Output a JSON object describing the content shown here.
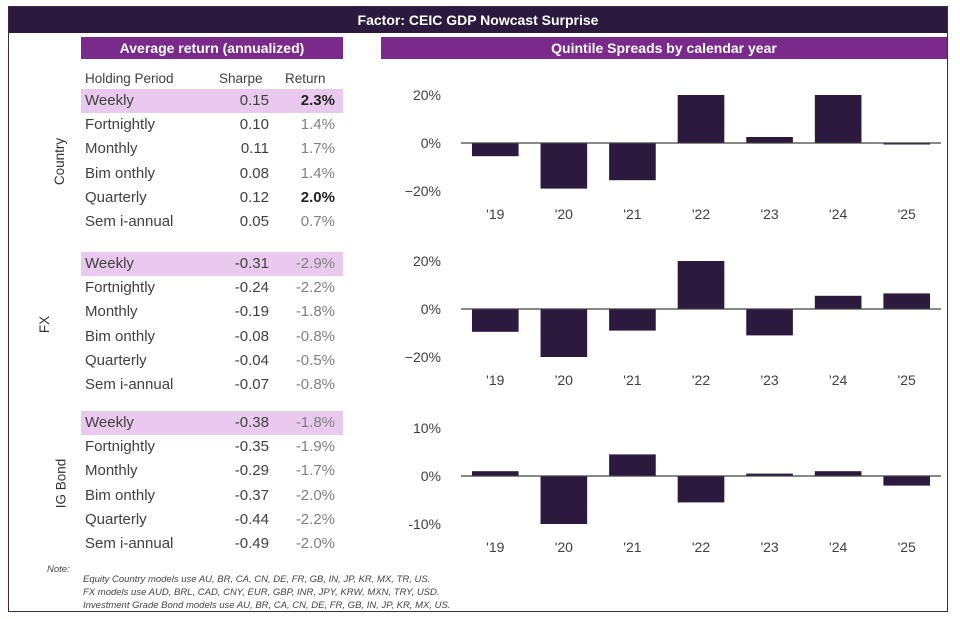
{
  "title": "Factor: CEIC GDP Nowcast Surprise",
  "left_header": "Average return (annualized)",
  "right_header": "Quintile Spreads by calendar year",
  "columns": {
    "holding": "Holding Period",
    "sharpe": "Sharpe",
    "ret": "Return"
  },
  "groups": [
    {
      "label": "Country",
      "rows": [
        {
          "period": "Weekly",
          "sharpe": "0.15",
          "ret": "2.3%",
          "highlight": true,
          "bold": true
        },
        {
          "period": "Fortnightly",
          "sharpe": "0.10",
          "ret": "1.4%",
          "highlight": false,
          "bold": false
        },
        {
          "period": "Monthly",
          "sharpe": "0.11",
          "ret": "1.7%",
          "highlight": false,
          "bold": false
        },
        {
          "period": "Bim onthly",
          "sharpe": "0.08",
          "ret": "1.4%",
          "highlight": false,
          "bold": false
        },
        {
          "period": "Quarterly",
          "sharpe": "0.12",
          "ret": "2.0%",
          "highlight": false,
          "bold": true
        },
        {
          "period": "Sem i-annual",
          "sharpe": "0.05",
          "ret": "0.7%",
          "highlight": false,
          "bold": false
        }
      ]
    },
    {
      "label": "FX",
      "rows": [
        {
          "period": "Weekly",
          "sharpe": "-0.31",
          "ret": "-2.9%",
          "highlight": true,
          "bold": false
        },
        {
          "period": "Fortnightly",
          "sharpe": "-0.24",
          "ret": "-2.2%",
          "highlight": false,
          "bold": false
        },
        {
          "period": "Monthly",
          "sharpe": "-0.19",
          "ret": "-1.8%",
          "highlight": false,
          "bold": false
        },
        {
          "period": "Bim onthly",
          "sharpe": "-0.08",
          "ret": "-0.8%",
          "highlight": false,
          "bold": false
        },
        {
          "period": "Quarterly",
          "sharpe": "-0.04",
          "ret": "-0.5%",
          "highlight": false,
          "bold": false
        },
        {
          "period": "Sem i-annual",
          "sharpe": "-0.07",
          "ret": "-0.8%",
          "highlight": false,
          "bold": false
        }
      ]
    },
    {
      "label": "IG Bond",
      "rows": [
        {
          "period": "Weekly",
          "sharpe": "-0.38",
          "ret": "-1.8%",
          "highlight": true,
          "bold": false
        },
        {
          "period": "Fortnightly",
          "sharpe": "-0.35",
          "ret": "-1.9%",
          "highlight": false,
          "bold": false
        },
        {
          "period": "Monthly",
          "sharpe": "-0.29",
          "ret": "-1.7%",
          "highlight": false,
          "bold": false
        },
        {
          "period": "Bim onthly",
          "sharpe": "-0.37",
          "ret": "-2.0%",
          "highlight": false,
          "bold": false
        },
        {
          "period": "Quarterly",
          "sharpe": "-0.44",
          "ret": "-2.2%",
          "highlight": false,
          "bold": false
        },
        {
          "period": "Sem i-annual",
          "sharpe": "-0.49",
          "ret": "-2.0%",
          "highlight": false,
          "bold": false
        }
      ]
    }
  ],
  "note": {
    "label": "Note:",
    "lines": [
      "Equity Country models use AU, BR, CA, CN, DE, FR, GB, IN, JP, KR, MX, TR, US.",
      "FX models use AUD, BRL, CAD, CNY, EUR, GBP, INR, JPY, KRW, MXN, TRY, USD.",
      "Investment Grade Bond models use AU, BR, CA, CN, DE, FR, GB, IN, JP, KR, MX, US."
    ]
  },
  "colors": {
    "bar": "#2b1a3d",
    "axis": "#404040"
  },
  "chart_data": [
    {
      "type": "bar",
      "title": "",
      "categories": [
        "'19",
        "'20",
        "'21",
        "'22",
        "'23",
        "'24",
        "'25"
      ],
      "values": [
        -5.5,
        -19,
        -15.5,
        20,
        2.5,
        20,
        -0.5
      ],
      "ylim": [
        -20,
        20
      ],
      "yticks": [
        20,
        0,
        -20
      ],
      "ytick_labels": [
        "20%",
        "0%",
        "−20%"
      ]
    },
    {
      "type": "bar",
      "title": "",
      "categories": [
        "'19",
        "'20",
        "'21",
        "'22",
        "'23",
        "'24",
        "'25"
      ],
      "values": [
        -9.5,
        -20,
        -9,
        20,
        -11,
        5.5,
        6.5
      ],
      "ylim": [
        -20,
        20
      ],
      "yticks": [
        20,
        0,
        -20
      ],
      "ytick_labels": [
        "20%",
        "0%",
        "−20%"
      ]
    },
    {
      "type": "bar",
      "title": "",
      "categories": [
        "'19",
        "'20",
        "'21",
        "'22",
        "'23",
        "'24",
        "'25"
      ],
      "values": [
        1,
        -10,
        4.5,
        -5.5,
        0.5,
        1,
        -2
      ],
      "ylim": [
        -10,
        10
      ],
      "yticks": [
        10,
        0,
        -10
      ],
      "ytick_labels": [
        "10%",
        "0%",
        "-10%"
      ]
    }
  ]
}
